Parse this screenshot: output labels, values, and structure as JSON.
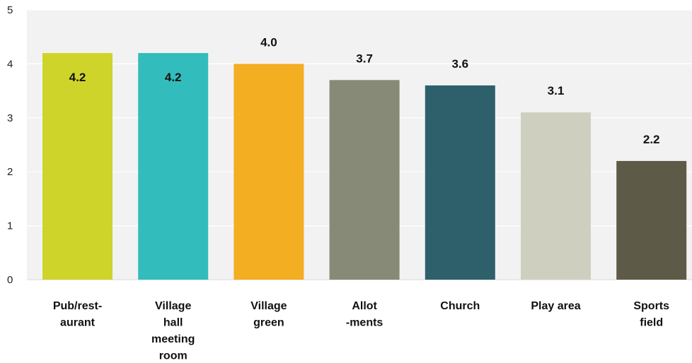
{
  "chart_data": {
    "type": "bar",
    "title": "",
    "xlabel": "",
    "ylabel": "",
    "ylim": [
      0,
      5
    ],
    "yticks": [
      "0",
      "1",
      "2",
      "3",
      "4",
      "5"
    ],
    "grid": true,
    "categories": [
      [
        "Pub/rest-",
        "aurant"
      ],
      [
        "Village",
        "hall",
        "meeting",
        "room"
      ],
      [
        "Village",
        "green"
      ],
      [
        "Allot",
        "-ments"
      ],
      [
        "Church"
      ],
      [
        "Play area"
      ],
      [
        "Sports",
        "field"
      ]
    ],
    "values": [
      4.2,
      4.2,
      4.0,
      3.7,
      3.6,
      3.1,
      2.2
    ],
    "data_labels": [
      "4.2",
      "4.2",
      "4.0",
      "3.7",
      "3.6",
      "3.1",
      "2.2"
    ],
    "label_inside_bar": [
      true,
      true,
      false,
      false,
      false,
      false,
      false
    ],
    "colors": [
      "#cfd42a",
      "#33bcbc",
      "#f4ae22",
      "#888a78",
      "#2e606c",
      "#cfcfc0",
      "#5e5a48"
    ],
    "plot_background": "#f2f2f2"
  }
}
